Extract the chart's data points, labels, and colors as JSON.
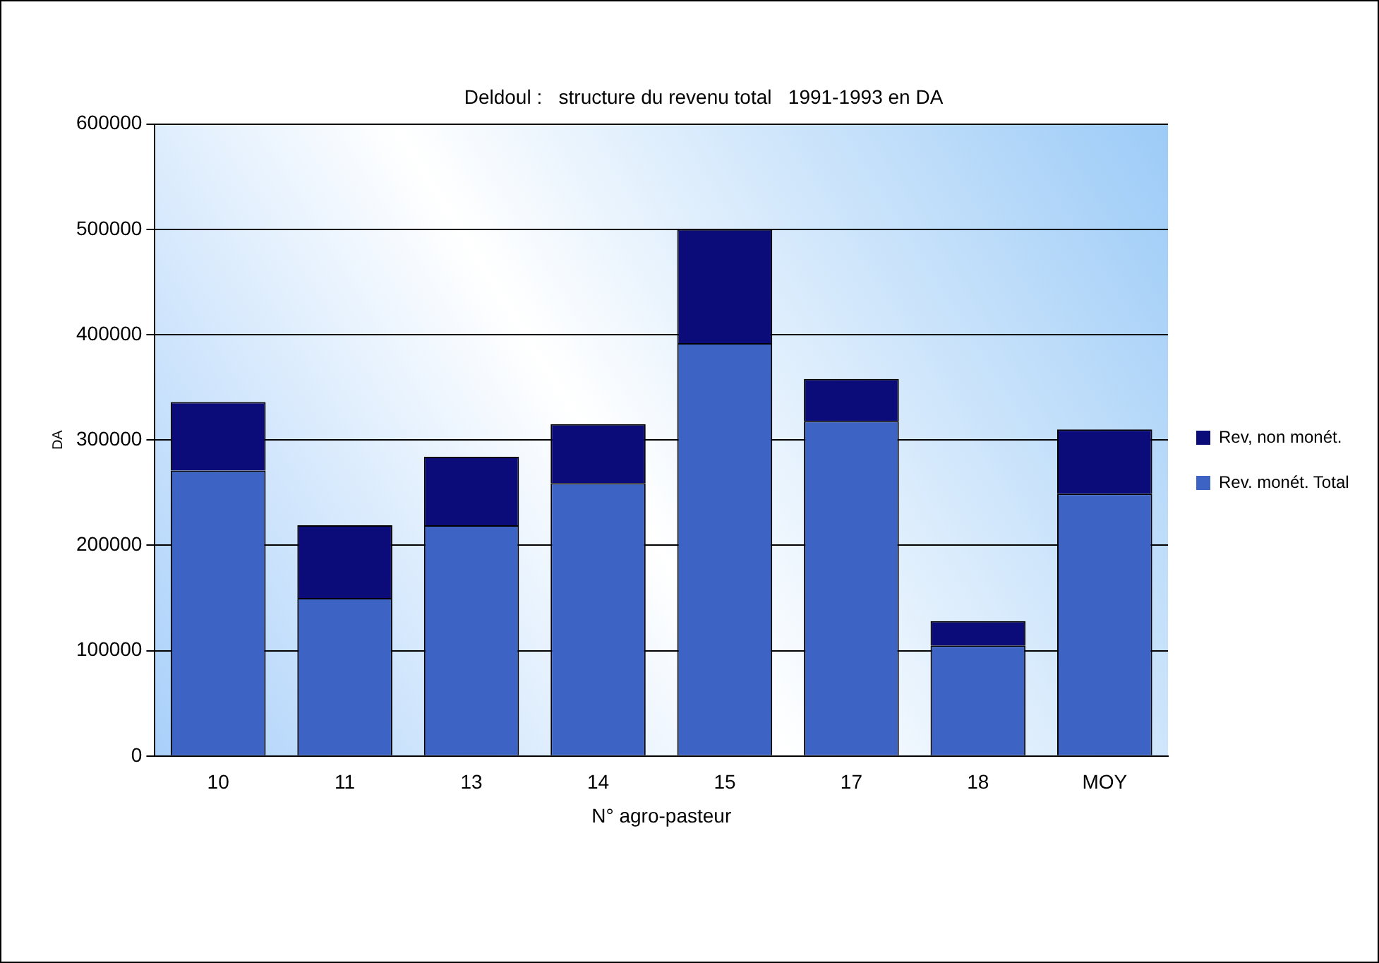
{
  "chart_data": {
    "type": "bar",
    "title": "Deldoul :   structure du revenu total   1991-1993 en DA",
    "xlabel": "N° agro-pasteur",
    "ylabel": "DA",
    "categories": [
      "10",
      "11",
      "13",
      "14",
      "15",
      "17",
      "18",
      "MOY"
    ],
    "series": [
      {
        "name": "Rev. monét. Total",
        "color": "#3d63c4",
        "values": [
          271000,
          150000,
          219000,
          259000,
          392000,
          318000,
          105000,
          249000
        ]
      },
      {
        "name": "Rev, non monét.",
        "color": "#0b0b7a",
        "values": [
          65000,
          69000,
          65000,
          56000,
          108000,
          40000,
          23000,
          61000
        ]
      }
    ],
    "stacked": true,
    "ylim": [
      0,
      600000
    ],
    "yticks": [
      0,
      100000,
      200000,
      300000,
      400000,
      500000,
      600000
    ],
    "grid": "y",
    "legend": "right"
  }
}
